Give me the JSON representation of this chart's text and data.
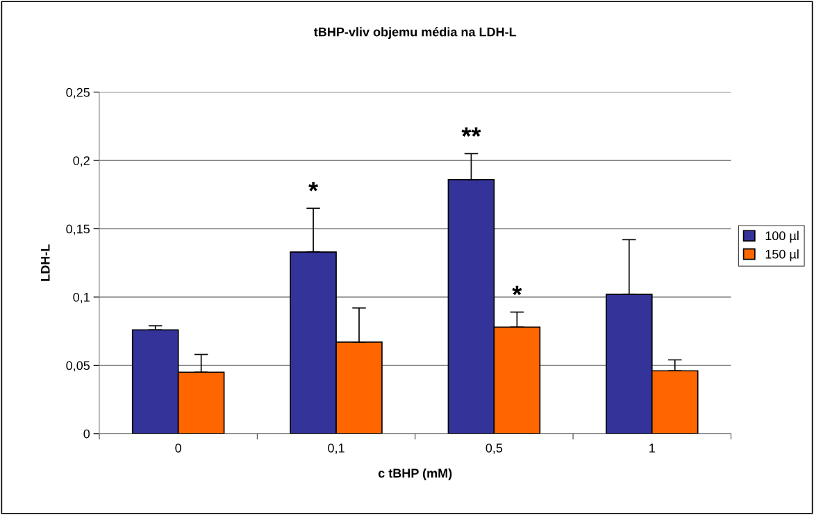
{
  "chart_data": {
    "type": "bar",
    "title": "tBHP-vliv objemu média na LDH-L",
    "xlabel": "c tBHP (mM)",
    "ylabel": "LDH-L",
    "categories": [
      "0",
      "0,1",
      "0,5",
      "1"
    ],
    "series": [
      {
        "name": "100 µl",
        "color": "#333399",
        "values": [
          0.076,
          0.133,
          0.186,
          0.102
        ],
        "errors": [
          [
            0.076,
            0.079
          ],
          [
            0.133,
            0.165
          ],
          [
            0.186,
            0.205
          ],
          [
            0.102,
            0.142
          ]
        ]
      },
      {
        "name": "150 µl",
        "color": "#ff6600",
        "values": [
          0.045,
          0.067,
          0.078,
          0.046
        ],
        "errors": [
          [
            0.045,
            0.058
          ],
          [
            0.067,
            0.092
          ],
          [
            0.078,
            0.089
          ],
          [
            0.046,
            0.054
          ]
        ]
      }
    ],
    "annotations": [
      {
        "text": "*",
        "x": "0,1",
        "y": 0.133
      },
      {
        "text": "**",
        "x": "0,5",
        "y": 0.186
      },
      {
        "text": "*",
        "x": "0,5",
        "y": 0.078
      }
    ],
    "ylim": [
      0,
      0.25
    ],
    "yticks": [
      0,
      {
        "value": 0.05,
        "label": "0,05"
      },
      {
        "value": 0.1,
        "label": "0,1"
      },
      {
        "value": 0.15,
        "label": "0,15"
      },
      {
        "value": 0.2,
        "label": "0,2"
      },
      {
        "value": 0.25,
        "label": "0,25"
      }
    ],
    "grid": "y",
    "legend": "right"
  }
}
